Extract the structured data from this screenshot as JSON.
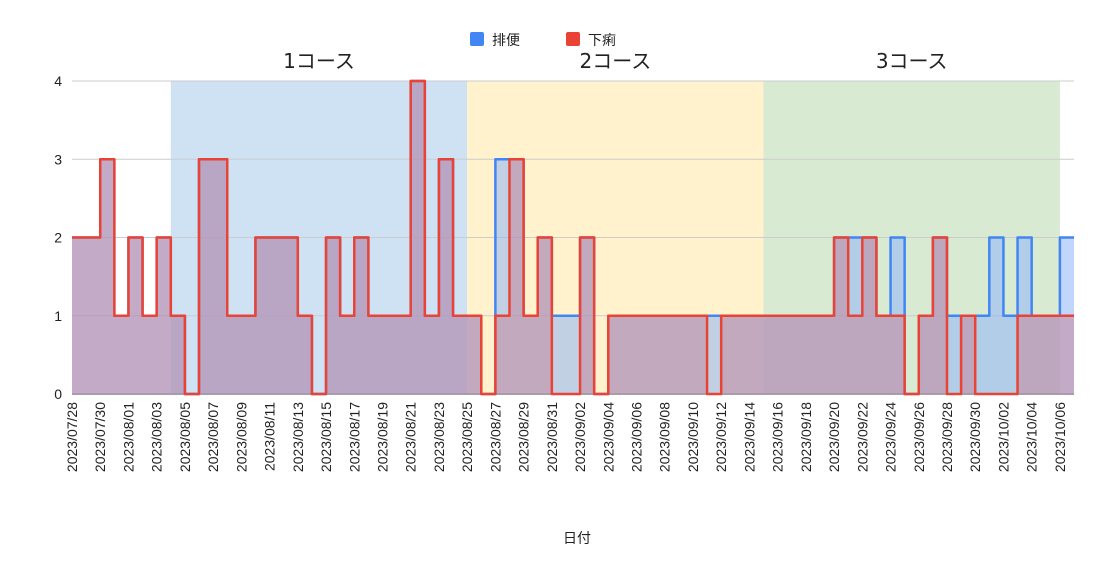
{
  "chart_data": {
    "type": "area",
    "step": true,
    "xlabel": "日付",
    "ylabel": "",
    "ylim": [
      0,
      4
    ],
    "yticks": [
      0,
      1,
      2,
      3,
      4
    ],
    "grid": true,
    "legend_position": "top",
    "x_start": "2023/07/28",
    "x_end": "2023/10/07",
    "x_ticks": [
      "2023/07/28",
      "2023/07/30",
      "2023/08/01",
      "2023/08/03",
      "2023/08/05",
      "2023/08/07",
      "2023/08/09",
      "2023/08/11",
      "2023/08/13",
      "2023/08/15",
      "2023/08/17",
      "2023/08/19",
      "2023/08/21",
      "2023/08/23",
      "2023/08/25",
      "2023/08/27",
      "2023/08/29",
      "2023/08/31",
      "2023/09/02",
      "2023/09/04",
      "2023/09/06",
      "2023/09/08",
      "2023/09/10",
      "2023/09/12",
      "2023/09/14",
      "2023/09/16",
      "2023/09/18",
      "2023/09/20",
      "2023/09/22",
      "2023/09/24",
      "2023/09/26",
      "2023/09/28",
      "2023/09/30",
      "2023/10/02",
      "2023/10/04",
      "2023/10/06"
    ],
    "dates": [
      "2023/07/28",
      "2023/07/29",
      "2023/07/30",
      "2023/07/31",
      "2023/08/01",
      "2023/08/02",
      "2023/08/03",
      "2023/08/04",
      "2023/08/05",
      "2023/08/06",
      "2023/08/07",
      "2023/08/08",
      "2023/08/09",
      "2023/08/10",
      "2023/08/11",
      "2023/08/12",
      "2023/08/13",
      "2023/08/14",
      "2023/08/15",
      "2023/08/16",
      "2023/08/17",
      "2023/08/18",
      "2023/08/19",
      "2023/08/20",
      "2023/08/21",
      "2023/08/22",
      "2023/08/23",
      "2023/08/24",
      "2023/08/25",
      "2023/08/26",
      "2023/08/27",
      "2023/08/28",
      "2023/08/29",
      "2023/08/30",
      "2023/08/31",
      "2023/09/01",
      "2023/09/02",
      "2023/09/03",
      "2023/09/04",
      "2023/09/05",
      "2023/09/06",
      "2023/09/07",
      "2023/09/08",
      "2023/09/09",
      "2023/09/10",
      "2023/09/11",
      "2023/09/12",
      "2023/09/13",
      "2023/09/14",
      "2023/09/15",
      "2023/09/16",
      "2023/09/17",
      "2023/09/18",
      "2023/09/19",
      "2023/09/20",
      "2023/09/21",
      "2023/09/22",
      "2023/09/23",
      "2023/09/24",
      "2023/09/25",
      "2023/09/26",
      "2023/09/27",
      "2023/09/28",
      "2023/09/29",
      "2023/09/30",
      "2023/10/01",
      "2023/10/02",
      "2023/10/03",
      "2023/10/04",
      "2023/10/05",
      "2023/10/06"
    ],
    "series": [
      {
        "name": "排便",
        "color": "#4285F4",
        "fill": "#8FB4F7",
        "values": [
          2,
          2,
          3,
          1,
          2,
          1,
          2,
          1,
          0,
          3,
          3,
          1,
          1,
          2,
          2,
          2,
          1,
          0,
          2,
          1,
          2,
          1,
          1,
          1,
          4,
          1,
          3,
          1,
          1,
          0,
          3,
          3,
          1,
          2,
          1,
          1,
          2,
          0,
          1,
          1,
          1,
          1,
          1,
          1,
          1,
          1,
          1,
          1,
          1,
          1,
          1,
          1,
          1,
          1,
          2,
          2,
          2,
          1,
          2,
          0,
          1,
          2,
          1,
          1,
          1,
          2,
          1,
          2,
          1,
          1,
          2
        ]
      },
      {
        "name": "下痢",
        "color": "#EA4335",
        "fill": "#C5889D",
        "values": [
          2,
          2,
          3,
          1,
          2,
          1,
          2,
          1,
          0,
          3,
          3,
          1,
          1,
          2,
          2,
          2,
          1,
          0,
          2,
          1,
          2,
          1,
          1,
          1,
          4,
          1,
          3,
          1,
          1,
          0,
          1,
          3,
          1,
          2,
          0,
          0,
          2,
          0,
          1,
          1,
          1,
          1,
          1,
          1,
          1,
          0,
          1,
          1,
          1,
          1,
          1,
          1,
          1,
          1,
          2,
          1,
          2,
          1,
          1,
          0,
          1,
          2,
          0,
          1,
          0,
          0,
          0,
          1,
          1,
          1,
          1
        ]
      }
    ],
    "regions": [
      {
        "label": "1コース",
        "start": "2023/08/04",
        "end": "2023/08/25",
        "color": "#CFE2F3"
      },
      {
        "label": "2コース",
        "start": "2023/08/25",
        "end": "2023/09/15",
        "color": "#FFF2CC"
      },
      {
        "label": "3コース",
        "start": "2023/09/15",
        "end": "2023/10/06",
        "color": "#D9EAD3"
      }
    ]
  }
}
